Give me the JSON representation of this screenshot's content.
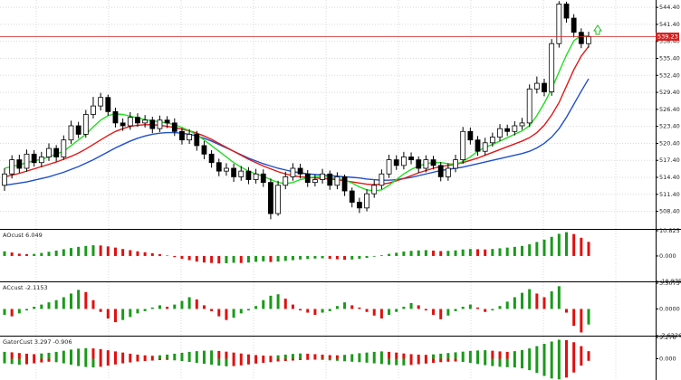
{
  "chart_data": [
    {
      "type": "candlestick",
      "open": [
        513.0,
        515.0,
        517.5,
        516.0,
        518.5,
        517.0,
        518.0,
        519.5,
        518.0,
        521.0,
        523.5,
        522.0,
        525.5,
        527.0,
        528.5,
        526.0,
        524.0,
        523.5,
        525.0,
        524.0,
        524.5,
        523.0,
        524.5,
        524.0,
        522.5,
        521.0,
        522.0,
        520.0,
        518.5,
        517.0,
        515.5,
        516.0,
        514.5,
        515.5,
        514.0,
        515.0,
        513.5,
        508.0,
        513.0,
        514.5,
        516.0,
        515.0,
        513.5,
        514.0,
        515.0,
        513.0,
        514.5,
        512.0,
        510.0,
        509.0,
        511.5,
        513.0,
        515.0,
        517.5,
        516.5,
        518.0,
        517.5,
        516.0,
        517.5,
        516.5,
        514.5,
        516.0,
        517.5,
        522.5,
        521.0,
        519.0,
        520.5,
        521.5,
        523.0,
        522.5,
        523.5,
        524.0,
        530.0,
        531.0,
        529.5,
        538.0,
        545.0,
        542.5,
        540.0,
        538.0
      ],
      "high": [
        516.0,
        518.3,
        518.4,
        519.3,
        519.2,
        518.9,
        520.4,
        520.1,
        521.8,
        524.4,
        524.2,
        526.3,
        528.6,
        529.3,
        529.0,
        526.7,
        524.8,
        525.9,
        525.7,
        525.4,
        525.1,
        525.3,
        525.2,
        524.8,
        523.1,
        522.9,
        522.6,
        520.8,
        519.2,
        517.7,
        516.9,
        516.8,
        516.4,
        516.2,
        515.9,
        515.8,
        514.2,
        513.8,
        515.4,
        516.9,
        516.8,
        515.7,
        514.9,
        515.9,
        515.6,
        515.3,
        514.9,
        512.6,
        510.8,
        512.3,
        513.9,
        515.8,
        518.4,
        518.3,
        518.9,
        518.8,
        518.1,
        518.3,
        518.2,
        517.1,
        516.9,
        518.4,
        523.3,
        523.2,
        521.7,
        521.4,
        522.3,
        523.8,
        523.7,
        524.3,
        524.9,
        530.8,
        532.2,
        531.8,
        538.8,
        545.5,
        545.4,
        543.2,
        540.7,
        540.1
      ],
      "low": [
        512.0,
        514.2,
        515.2,
        515.4,
        516.3,
        516.2,
        517.3,
        517.2,
        517.5,
        520.3,
        521.3,
        521.4,
        524.8,
        526.2,
        525.3,
        523.2,
        522.6,
        522.8,
        523.3,
        523.2,
        522.2,
        522.4,
        523.1,
        521.7,
        520.2,
        520.3,
        519.1,
        517.6,
        516.1,
        514.6,
        514.7,
        513.6,
        513.8,
        513.2,
        513.3,
        512.7,
        507.0,
        507.6,
        512.3,
        513.8,
        514.2,
        512.7,
        512.8,
        513.3,
        512.2,
        512.3,
        511.1,
        509.1,
        508.1,
        508.4,
        510.8,
        512.3,
        514.3,
        515.7,
        515.8,
        516.7,
        515.2,
        515.3,
        515.8,
        513.7,
        513.8,
        515.3,
        516.8,
        520.2,
        518.2,
        518.3,
        519.8,
        520.8,
        521.7,
        521.8,
        522.8,
        523.3,
        529.2,
        528.7,
        528.8,
        537.3,
        541.7,
        539.1,
        537.2,
        537.3
      ],
      "close": [
        515.0,
        517.5,
        516.0,
        518.5,
        517.0,
        518.0,
        519.5,
        518.0,
        521.0,
        523.5,
        522.0,
        525.5,
        527.0,
        528.5,
        526.0,
        524.0,
        523.5,
        525.0,
        524.0,
        524.5,
        523.0,
        524.5,
        524.0,
        522.5,
        521.0,
        522.0,
        520.0,
        518.5,
        517.0,
        515.5,
        516.0,
        514.5,
        515.5,
        514.0,
        515.0,
        513.5,
        508.0,
        513.0,
        514.5,
        516.0,
        515.0,
        513.5,
        514.0,
        515.0,
        513.0,
        514.5,
        512.0,
        510.0,
        509.0,
        511.5,
        513.0,
        515.0,
        517.5,
        516.5,
        518.0,
        517.5,
        516.0,
        517.5,
        516.5,
        514.5,
        516.0,
        517.5,
        522.5,
        521.0,
        519.0,
        520.5,
        521.5,
        523.0,
        522.5,
        523.5,
        524.0,
        530.0,
        531.0,
        529.5,
        538.0,
        545.0,
        542.5,
        540.0,
        538.0,
        539.23
      ],
      "up_color": "#ffffff",
      "down_color": "#000000",
      "wick_color": "#000000",
      "lines": [
        {
          "color": "#1f4fc8",
          "values": [
            513,
            513.2,
            513.4,
            513.6,
            513.9,
            514.2,
            514.5,
            514.9,
            515.3,
            515.8,
            516.3,
            516.9,
            517.5,
            518.2,
            518.9,
            519.6,
            520.2,
            520.8,
            521.3,
            521.7,
            522,
            522.2,
            522.3,
            522.3,
            522.2,
            522,
            521.7,
            521.3,
            520.8,
            520.2,
            519.6,
            519,
            518.4,
            517.8,
            517.3,
            516.8,
            516.4,
            516,
            515.7,
            515.4,
            515.2,
            515,
            514.9,
            514.8,
            514.7,
            514.6,
            514.5,
            514.4,
            514.3,
            514.1,
            514,
            513.9,
            513.9,
            514,
            514.2,
            514.4,
            514.7,
            515,
            515.3,
            515.6,
            515.8,
            516,
            516.2,
            516.5,
            516.8,
            517.1,
            517.4,
            517.7,
            518,
            518.3,
            518.6,
            519,
            519.6,
            520.4,
            521.5,
            523,
            525,
            527.3,
            529.6,
            531.8
          ]
        },
        {
          "color": "#e01818",
          "values": [
            514.5,
            514.8,
            515.1,
            515.5,
            515.9,
            516.3,
            516.7,
            517.1,
            517.6,
            518.1,
            518.7,
            519.4,
            520.2,
            521,
            521.8,
            522.5,
            523,
            523.4,
            523.6,
            523.7,
            523.7,
            523.6,
            523.4,
            523.2,
            522.9,
            522.6,
            522.2,
            521.7,
            521.1,
            520.4,
            519.7,
            519,
            518.3,
            517.6,
            517,
            516.4,
            515.9,
            515.4,
            515,
            514.7,
            514.5,
            514.4,
            514.3,
            514.2,
            514.1,
            514,
            513.8,
            513.6,
            513.4,
            513.2,
            513.1,
            513.2,
            513.4,
            513.8,
            514.2,
            514.7,
            515.2,
            515.6,
            516,
            516.3,
            516.5,
            516.7,
            517,
            517.4,
            517.8,
            518.3,
            518.8,
            519.3,
            519.8,
            520.3,
            520.8,
            521.4,
            522.3,
            523.6,
            525.4,
            527.6,
            530.5,
            533.4,
            535.8,
            537.5
          ]
        },
        {
          "color": "#22dd22",
          "values": [
            516,
            516.3,
            516.6,
            517,
            517.3,
            517.6,
            518,
            518.5,
            519,
            520,
            521,
            522,
            523.3,
            524.5,
            525.3,
            525.6,
            525.5,
            525.2,
            524.9,
            524.6,
            524.4,
            524.2,
            524,
            523.7,
            523.2,
            522.6,
            521.9,
            521,
            520,
            519,
            518,
            517,
            516.2,
            515.5,
            515,
            514.6,
            514,
            513.5,
            513.3,
            513.5,
            514,
            514.3,
            514.5,
            514.5,
            514.4,
            514.2,
            513.9,
            513.4,
            512.7,
            512.2,
            512,
            512.2,
            513,
            514,
            515,
            515.8,
            516.4,
            516.8,
            517,
            517,
            516.8,
            516.7,
            517.2,
            518,
            519,
            519.7,
            520.2,
            520.8,
            521.4,
            522,
            522.6,
            523.5,
            525.3,
            527.5,
            530,
            533,
            536,
            538.5,
            539.5,
            539.3
          ]
        }
      ],
      "last_price": 539.23,
      "last_price_color": "#d42020",
      "ylim": [
        505.3,
        545.7
      ],
      "yticks": [
        {
          "value": 508.4,
          "label": "508.40"
        },
        {
          "value": 511.4,
          "label": "511.40"
        },
        {
          "value": 514.4,
          "label": "514.40"
        },
        {
          "value": 517.4,
          "label": "517.40"
        },
        {
          "value": 520.4,
          "label": "520.40"
        },
        {
          "value": 523.4,
          "label": "523.40"
        },
        {
          "value": 526.4,
          "label": "526.40"
        },
        {
          "value": 529.4,
          "label": "529.40"
        },
        {
          "value": 532.4,
          "label": "532.40"
        },
        {
          "value": 535.4,
          "label": "535.40"
        },
        {
          "value": 538.4,
          "label": "538.40"
        },
        {
          "value": 541.4,
          "label": "541.40"
        },
        {
          "value": 544.4,
          "label": "544.40"
        }
      ],
      "grid": true
    },
    {
      "type": "bar",
      "title": "AOcust 6.049",
      "values": [
        2,
        1.5,
        1,
        0.8,
        0.9,
        1.3,
        1.8,
        2.3,
        2.9,
        3.4,
        3.9,
        4.3,
        4.6,
        4.5,
        4.1,
        3.6,
        3,
        2.5,
        2,
        1.6,
        1.2,
        0.8,
        0.2,
        -0.5,
        -1.2,
        -1.8,
        -2.4,
        -2.8,
        -3,
        -3.2,
        -3.1,
        -2.9,
        -3,
        -2.8,
        -2.5,
        -2.3,
        -2.6,
        -2.4,
        -2.1,
        -1.8,
        -1.5,
        -1.3,
        -1.1,
        -1,
        -1.2,
        -1.4,
        -1.6,
        -1.5,
        -1.2,
        -0.8,
        -0.3,
        0.3,
        0.9,
        1.4,
        1.9,
        2.2,
        2.4,
        2.5,
        2.3,
        2.1,
        2.2,
        2.4,
        2.8,
        3,
        2.9,
        2.8,
        3,
        3.3,
        3.6,
        3.9,
        4.3,
        5,
        6,
        7,
        8.2,
        9.5,
        10.2,
        9.4,
        7.8,
        6.049
      ],
      "up_color": "#1a9a1a",
      "down_color": "#e01010",
      "ylim": [
        -10.875,
        10.825
      ],
      "yticks": [
        -10.875,
        {
          "value": 0,
          "label": "0.000"
        },
        10.825
      ]
    },
    {
      "type": "bar",
      "title": "ACcust -2.1153",
      "values": [
        -0.8,
        -1,
        -0.6,
        -0.2,
        0.3,
        0.6,
        0.9,
        1.2,
        1.6,
        2.1,
        2.6,
        2.3,
        1.2,
        -0.4,
        -1.3,
        -1.8,
        -1.5,
        -1.1,
        -0.6,
        -0.3,
        0.2,
        0.5,
        0.3,
        0.6,
        1.1,
        1.6,
        1.3,
        0.5,
        -0.3,
        -1,
        -1.5,
        -1.2,
        -0.6,
        -0.2,
        0.4,
        1.2,
        1.8,
        2,
        1.4,
        0.6,
        -0.2,
        -0.5,
        -0.8,
        -0.5,
        -0.3,
        0.4,
        0.9,
        0.5,
        0.2,
        -0.4,
        -0.9,
        -1.3,
        -0.8,
        -0.4,
        0.3,
        0.8,
        0.5,
        -0.2,
        -0.8,
        -1.4,
        -0.9,
        -0.3,
        0.3,
        0.6,
        0.2,
        -0.4,
        -0.2,
        0.4,
        1,
        1.6,
        2.2,
        2.7,
        2.1,
        1.6,
        2.4,
        3.1,
        -0.5,
        -2.3,
        -3.2,
        -2.1153
      ],
      "up_color": "#1a9a1a",
      "down_color": "#e01010",
      "ylim": [
        -3.6336,
        3.5075
      ],
      "yticks": [
        -3.6336,
        {
          "value": 0,
          "label": "0.0000"
        },
        3.5075
      ]
    },
    {
      "type": "gator",
      "title": "GatorCust 3.297 -0.906",
      "series": [
        {
          "values": [
            3,
            2.8,
            2.5,
            2.2,
            2,
            2.3,
            2.6,
            3,
            3.5,
            4,
            4.4,
            4.6,
            4.5,
            4.2,
            3.7,
            3.2,
            2.7,
            2.2,
            1.8,
            1.5,
            1.3,
            1.5,
            1.8,
            2.2,
            2.6,
            3,
            3.3,
            3.5,
            3.6,
            3.4,
            3.1,
            2.7,
            2.3,
            1.9,
            1.6,
            1.4,
            1.3,
            1.5,
            1.8,
            2.1,
            2.3,
            2.2,
            2,
            1.8,
            1.6,
            1.5,
            1.7,
            2,
            2.4,
            2.7,
            3,
            3.2,
            3,
            2.7,
            2.3,
            2,
            1.8,
            1.7,
            1.9,
            2.2,
            2.5,
            2.8,
            3.1,
            3.4,
            3.6,
            3.7,
            3.5,
            3.2,
            3,
            3.3,
            3.8,
            4.5,
            5.5,
            6.5,
            7.5,
            8.3,
            8.1,
            7.2,
            5.5,
            3.297
          ]
        },
        {
          "values": [
            -2,
            -2.3,
            -2.6,
            -2.4,
            -2,
            -1.6,
            -1.3,
            -1.5,
            -2,
            -2.6,
            -3.2,
            -3.6,
            -3.8,
            -3.5,
            -3,
            -2.5,
            -2,
            -1.6,
            -1.2,
            -1,
            -0.8,
            -0.6,
            -0.5,
            -0.7,
            -1,
            -1.4,
            -1.8,
            -2.2,
            -2.6,
            -3,
            -3.3,
            -3.2,
            -2.9,
            -2.5,
            -2.1,
            -1.8,
            -1.5,
            -1.2,
            -1,
            -0.8,
            -0.6,
            -0.5,
            -0.4,
            -0.5,
            -0.7,
            -0.9,
            -1.1,
            -1.3,
            -1.5,
            -1.7,
            -2,
            -2.3,
            -2.6,
            -2.8,
            -2.9,
            -2.7,
            -2.4,
            -2.1,
            -1.8,
            -1.5,
            -1.3,
            -1.2,
            -1.4,
            -1.8,
            -2.3,
            -2.8,
            -3.2,
            -3.5,
            -3.7,
            -3.8,
            -4.2,
            -5,
            -6.2,
            -7.5,
            -8.6,
            -9,
            -8.2,
            -6,
            -3,
            -0.906
          ]
        }
      ],
      "up_color": "#1a9a1a",
      "down_color": "#e01010",
      "ylim": [
        -9.276,
        9.276
      ],
      "yticks": [
        {
          "value": 0,
          "label": "0.000"
        },
        9.276
      ]
    }
  ]
}
